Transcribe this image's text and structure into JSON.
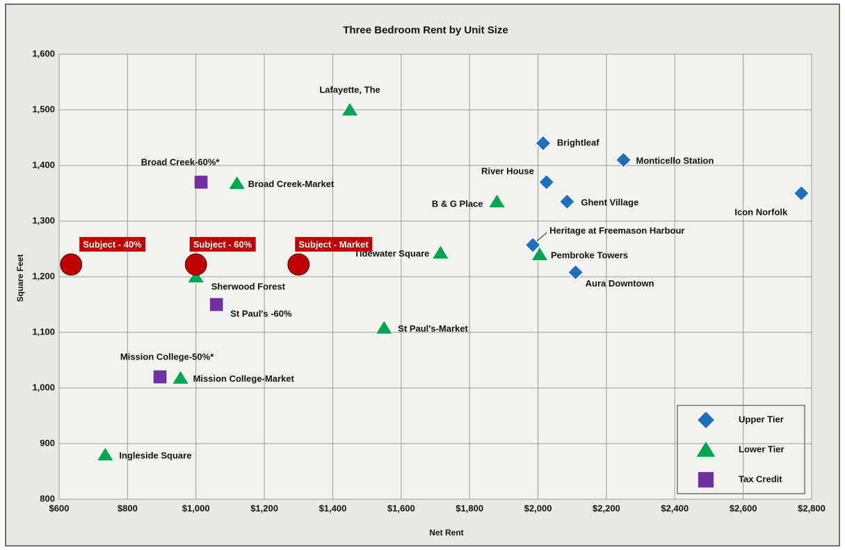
{
  "chart_data": {
    "type": "scatter",
    "title": "Three Bedroom Rent by Unit Size",
    "x_label": "Net Rent",
    "y_label": "Square Feet",
    "xlim": [
      600,
      2800
    ],
    "xticks": [
      {
        "value": 600,
        "label": "$600"
      },
      {
        "value": 800,
        "label": "$800"
      },
      {
        "value": 1000,
        "label": "$1,000"
      },
      {
        "value": 1200,
        "label": "$1,200"
      },
      {
        "value": 1400,
        "label": "$1,400"
      },
      {
        "value": 1600,
        "label": "$1,600"
      },
      {
        "value": 1800,
        "label": "$1,800"
      },
      {
        "value": 2000,
        "label": "$2,000"
      },
      {
        "value": 2200,
        "label": "$2,200"
      },
      {
        "value": 2400,
        "label": "$2,400"
      },
      {
        "value": 2600,
        "label": "$2,600"
      },
      {
        "value": 2800,
        "label": "$2,800"
      }
    ],
    "ylim": [
      800,
      1600
    ],
    "yticks": [
      800,
      900,
      {
        "value": 1000,
        "label": "1,000"
      },
      {
        "value": 1100,
        "label": "1,100"
      },
      {
        "value": 1200,
        "label": "1,200"
      },
      {
        "value": 1300,
        "label": "1,300"
      },
      {
        "value": 1400,
        "label": "1,400"
      },
      {
        "value": 1500,
        "label": "1,500"
      },
      {
        "value": 1600,
        "label": "1,600"
      }
    ],
    "grid": true,
    "legend": "lower right",
    "series": [
      {
        "name": "Upper Tier",
        "color": "#1f6fc0",
        "marker": "diamond",
        "labels": [
          "Brightleaf",
          "Monticello Station",
          "River House",
          "Ghent Village",
          "Icon Norfolk",
          "Heritage at Freemason Harbour",
          "Aura Downtown"
        ],
        "x": [
          2015,
          2250,
          2025,
          2085,
          2770,
          1985,
          2110
        ],
        "values": [
          1440,
          1410,
          1370,
          1335,
          1350,
          1257,
          1208
        ]
      },
      {
        "name": "Lower Tier",
        "color": "#00a651",
        "marker": "triangle",
        "labels": [
          "Lafayette, The",
          "Broad Creek-Market",
          "B & G Place",
          "Tidewater Square",
          "Pembroke Towers",
          "Sherwood Forest",
          "St Paul's-Market",
          "Mission College-Market",
          "Ingleside Square"
        ],
        "x": [
          1450,
          1120,
          1880,
          1715,
          2005,
          1000,
          1550,
          955,
          735
        ],
        "values": [
          1500,
          1368,
          1335,
          1243,
          1240,
          1200,
          1108,
          1018,
          880
        ]
      },
      {
        "name": "Tax Credit",
        "color": "#7030a0",
        "marker": "square",
        "labels": [
          "Broad Creek-60%*",
          "St Paul's -60%",
          "Mission College-50%*"
        ],
        "x": [
          1015,
          1060,
          895
        ],
        "values": [
          1370,
          1150,
          1020
        ]
      },
      {
        "color": "#c00000",
        "marker": "circle",
        "labels": [
          "Subject - 40%",
          "Subject - 60%",
          "Subject - Market"
        ],
        "x": [
          635,
          1000,
          1300
        ],
        "values": [
          1222,
          1222,
          1222
        ]
      }
    ]
  }
}
